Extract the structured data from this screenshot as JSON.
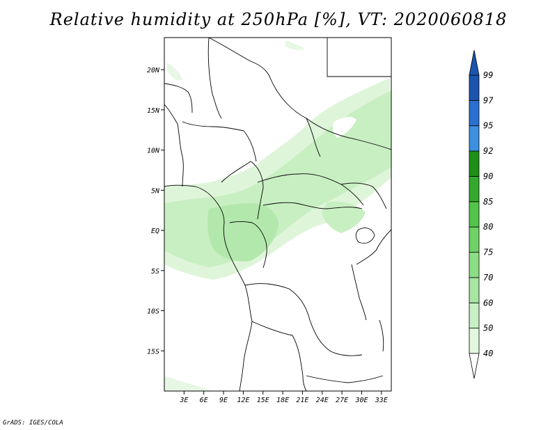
{
  "title": "Relative humidity at 250hPa [%], VT: 2020060818",
  "credit": "GrADS: IGES/COLA",
  "lon_labels": [
    "3E",
    "6E",
    "9E",
    "12E",
    "15E",
    "18E",
    "21E",
    "24E",
    "27E",
    "30E",
    "33E"
  ],
  "lat_labels": [
    "20N",
    "15N",
    "10N",
    "5N",
    "EQ",
    "5S",
    "10S",
    "15S"
  ],
  "colorbar": {
    "levels": [
      "40",
      "50",
      "60",
      "70",
      "75",
      "80",
      "85",
      "90",
      "92",
      "95",
      "97",
      "99"
    ],
    "colors": [
      "#f0fbef",
      "#e1f7de",
      "#c8f0c4",
      "#a8e6a2",
      "#8ddc86",
      "#6fd166",
      "#52c449",
      "#34a92d",
      "#1f8f1a",
      "#3d8fe0",
      "#2970d0",
      "#1b55b0"
    ]
  },
  "chart_data": {
    "type": "filled-contour-map",
    "title": "Relative humidity at 250hPa [%], VT: 2020060818",
    "variable": "Relative humidity",
    "level": "250hPa",
    "units": "%",
    "valid_time": "2020060818",
    "lon_range": [
      0,
      34.5
    ],
    "lat_range": [
      -20,
      24
    ],
    "contour_levels": [
      40,
      50,
      60,
      70,
      75,
      80,
      85,
      90,
      92,
      95,
      97,
      99
    ]
  }
}
